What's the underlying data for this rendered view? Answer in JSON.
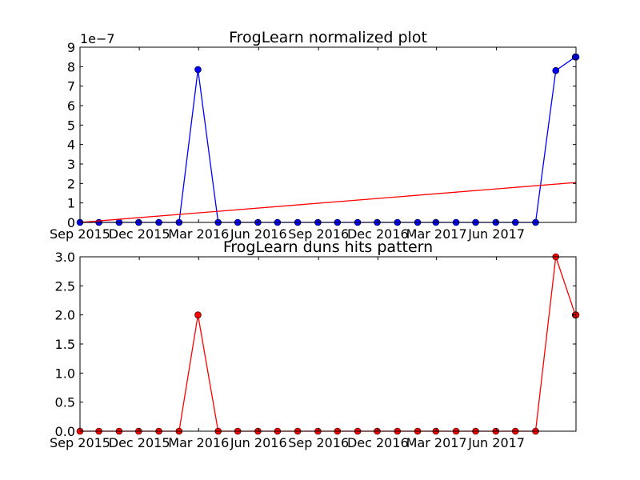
{
  "chart_data": [
    {
      "type": "line",
      "title": "FrogLearn normalized plot",
      "y_offset_label": "1e−7",
      "xlim": [
        "2015-09-01",
        "2017-10-01"
      ],
      "ylim": [
        0,
        9
      ],
      "yticks": [
        0,
        1,
        2,
        3,
        4,
        5,
        6,
        7,
        8,
        9
      ],
      "xticks": [
        {
          "date": "2015-09-01",
          "label": "Sep 2015"
        },
        {
          "date": "2015-12-01",
          "label": "Dec 2015"
        },
        {
          "date": "2016-03-01",
          "label": "Mar 2016"
        },
        {
          "date": "2016-06-01",
          "label": "Jun 2016"
        },
        {
          "date": "2016-09-01",
          "label": "Sep 2016"
        },
        {
          "date": "2016-12-01",
          "label": "Dec 2016"
        },
        {
          "date": "2017-03-01",
          "label": "Mar 2017"
        },
        {
          "date": "2017-06-01",
          "label": "Jun 2017"
        }
      ],
      "grid": false,
      "series": [
        {
          "color": "#0000ff",
          "marker": "circle",
          "x": [
            "2015-09-01",
            "2015-09-30",
            "2015-10-31",
            "2015-11-30",
            "2015-12-31",
            "2016-01-31",
            "2016-02-29",
            "2016-03-31",
            "2016-04-30",
            "2016-05-31",
            "2016-06-30",
            "2016-07-31",
            "2016-08-31",
            "2016-09-30",
            "2016-10-31",
            "2016-11-30",
            "2016-12-31",
            "2017-01-31",
            "2017-02-28",
            "2017-03-31",
            "2017-04-30",
            "2017-05-31",
            "2017-06-30",
            "2017-07-31",
            "2017-08-31",
            "2017-09-30",
            "2017-10-01"
          ],
          "y": [
            0,
            0,
            0,
            0,
            0,
            0,
            7.85,
            0,
            0,
            0,
            0,
            0,
            0,
            0,
            0,
            0,
            0,
            0,
            0,
            0,
            0,
            0,
            0,
            0,
            7.8,
            8.5,
            8.5
          ]
        },
        {
          "color": "#ff0000",
          "marker": "none",
          "x": [
            "2015-09-01",
            "2017-10-01"
          ],
          "y": [
            0,
            2.05
          ]
        }
      ]
    },
    {
      "type": "line",
      "title": "FrogLearn duns hits pattern",
      "xlim": [
        "2015-09-01",
        "2017-10-01"
      ],
      "ylim": [
        0,
        3
      ],
      "yticks": [
        "0.0",
        "0.5",
        "1.0",
        "1.5",
        "2.0",
        "2.5",
        "3.0"
      ],
      "xticks": [
        {
          "date": "2015-09-01",
          "label": "Sep 2015"
        },
        {
          "date": "2015-12-01",
          "label": "Dec 2015"
        },
        {
          "date": "2016-03-01",
          "label": "Mar 2016"
        },
        {
          "date": "2016-06-01",
          "label": "Jun 2016"
        },
        {
          "date": "2016-09-01",
          "label": "Sep 2016"
        },
        {
          "date": "2016-12-01",
          "label": "Dec 2016"
        },
        {
          "date": "2017-03-01",
          "label": "Mar 2017"
        },
        {
          "date": "2017-06-01",
          "label": "Jun 2017"
        }
      ],
      "grid": false,
      "series": [
        {
          "color": "#ff0000",
          "marker": "circle",
          "x": [
            "2015-09-01",
            "2015-09-30",
            "2015-10-31",
            "2015-11-30",
            "2015-12-31",
            "2016-01-31",
            "2016-02-29",
            "2016-03-31",
            "2016-04-30",
            "2016-05-31",
            "2016-06-30",
            "2016-07-31",
            "2016-08-31",
            "2016-09-30",
            "2016-10-31",
            "2016-11-30",
            "2016-12-31",
            "2017-01-31",
            "2017-02-28",
            "2017-03-31",
            "2017-04-30",
            "2017-05-31",
            "2017-06-30",
            "2017-07-31",
            "2017-08-31",
            "2017-09-30",
            "2017-10-01"
          ],
          "y": [
            0,
            0,
            0,
            0,
            0,
            0,
            2,
            0,
            0,
            0,
            0,
            0,
            0,
            0,
            0,
            0,
            0,
            0,
            0,
            0,
            0,
            0,
            0,
            0,
            3,
            2,
            2
          ]
        }
      ]
    }
  ]
}
